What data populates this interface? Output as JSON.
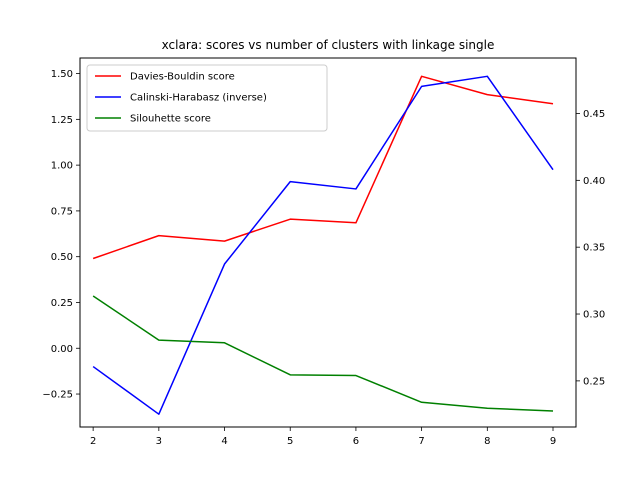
{
  "chart_data": {
    "type": "line",
    "title": "xclara: scores vs number of clusters with linkage single",
    "xlabel": "",
    "ylabel": "",
    "x": [
      2,
      3,
      4,
      5,
      6,
      7,
      8,
      9
    ],
    "xlim": [
      1.8,
      9.35
    ],
    "ylim_left": [
      -0.43,
      1.585
    ],
    "ylim_right": [
      0.2155,
      0.4915
    ],
    "left_ticks": [
      "−0.25",
      "0.00",
      "0.25",
      "0.50",
      "0.75",
      "1.00",
      "1.25",
      "1.50"
    ],
    "left_tick_values": [
      -0.25,
      0.0,
      0.25,
      0.5,
      0.75,
      1.0,
      1.25,
      1.5
    ],
    "right_ticks": [
      "0.25",
      "0.30",
      "0.35",
      "0.40",
      "0.45"
    ],
    "right_tick_values": [
      0.25,
      0.3,
      0.35,
      0.4,
      0.45
    ],
    "x_ticks": [
      "2",
      "3",
      "4",
      "5",
      "6",
      "7",
      "8",
      "9"
    ],
    "grid": false,
    "legend_position": "top-left",
    "series": [
      {
        "name": "Davies-Bouldin score",
        "axis": "left",
        "color": "#ff0000",
        "values": [
          0.49,
          0.615,
          0.585,
          0.705,
          0.685,
          1.485,
          1.385,
          1.335
        ]
      },
      {
        "name": "Calinski-Harabasz (inverse)",
        "axis": "left",
        "color": "#0000ff",
        "values": [
          -0.1,
          -0.36,
          0.46,
          0.91,
          0.87,
          1.43,
          1.485,
          0.975
        ]
      },
      {
        "name": "Silouhette score",
        "axis": "right",
        "color": "#008000",
        "values": [
          0.3135,
          0.2805,
          0.2785,
          0.2545,
          0.254,
          0.234,
          0.2295,
          0.2275
        ]
      }
    ]
  }
}
